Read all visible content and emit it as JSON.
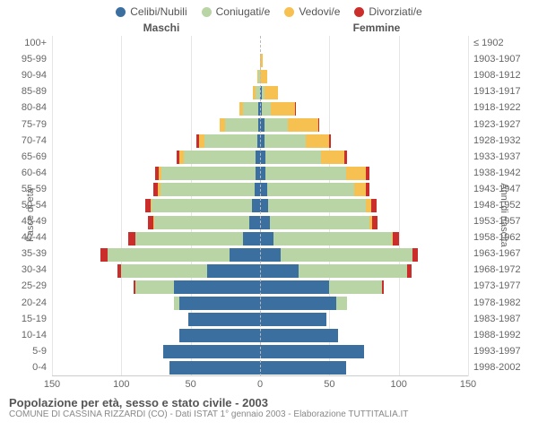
{
  "legend": {
    "items": [
      {
        "label": "Celibi/Nubili",
        "color": "#3b6fa0"
      },
      {
        "label": "Coniugati/e",
        "color": "#b9d4a5"
      },
      {
        "label": "Vedovi/e",
        "color": "#f7c151"
      },
      {
        "label": "Divorziati/e",
        "color": "#cb2e2a"
      }
    ]
  },
  "headers": {
    "left": "Maschi",
    "right": "Femmine"
  },
  "axis_labels": {
    "left": "Fasce di età",
    "right": "Anni di nascita"
  },
  "colors": {
    "single": "#3b6fa0",
    "married": "#b9d4a5",
    "widowed": "#f7c151",
    "divorced": "#cb2e2a",
    "grid": "#e5e5e5",
    "text": "#666666"
  },
  "xlim": 150,
  "x_ticks_left": [
    150,
    100,
    50,
    0
  ],
  "x_ticks_right": [
    50,
    100,
    150
  ],
  "footer": {
    "title": "Popolazione per età, sesso e stato civile - 2003",
    "subtitle": "COMUNE DI CASSINA RIZZARDI (CO) - Dati ISTAT 1° gennaio 2003 - Elaborazione TUTTITALIA.IT"
  },
  "rows": [
    {
      "age": "100+",
      "birth": "≤ 1902",
      "m": {
        "s": 0,
        "c": 0,
        "v": 0,
        "d": 0
      },
      "f": {
        "s": 0,
        "c": 0,
        "v": 0,
        "d": 0
      }
    },
    {
      "age": "95-99",
      "birth": "1903-1907",
      "m": {
        "s": 0,
        "c": 0,
        "v": 0,
        "d": 0
      },
      "f": {
        "s": 0,
        "c": 0,
        "v": 2,
        "d": 0
      }
    },
    {
      "age": "90-94",
      "birth": "1908-1912",
      "m": {
        "s": 0,
        "c": 1,
        "v": 1,
        "d": 0
      },
      "f": {
        "s": 0,
        "c": 0,
        "v": 5,
        "d": 0
      }
    },
    {
      "age": "85-89",
      "birth": "1913-1917",
      "m": {
        "s": 0,
        "c": 3,
        "v": 2,
        "d": 0
      },
      "f": {
        "s": 1,
        "c": 2,
        "v": 10,
        "d": 0
      }
    },
    {
      "age": "80-84",
      "birth": "1918-1922",
      "m": {
        "s": 1,
        "c": 11,
        "v": 3,
        "d": 0
      },
      "f": {
        "s": 1,
        "c": 7,
        "v": 17,
        "d": 1
      }
    },
    {
      "age": "75-79",
      "birth": "1923-1927",
      "m": {
        "s": 1,
        "c": 24,
        "v": 4,
        "d": 0
      },
      "f": {
        "s": 3,
        "c": 17,
        "v": 22,
        "d": 1
      }
    },
    {
      "age": "70-74",
      "birth": "1928-1932",
      "m": {
        "s": 2,
        "c": 38,
        "v": 4,
        "d": 2
      },
      "f": {
        "s": 3,
        "c": 30,
        "v": 17,
        "d": 1
      }
    },
    {
      "age": "65-69",
      "birth": "1933-1937",
      "m": {
        "s": 3,
        "c": 52,
        "v": 3,
        "d": 2
      },
      "f": {
        "s": 4,
        "c": 40,
        "v": 17,
        "d": 2
      }
    },
    {
      "age": "60-64",
      "birth": "1938-1942",
      "m": {
        "s": 3,
        "c": 68,
        "v": 2,
        "d": 3
      },
      "f": {
        "s": 4,
        "c": 58,
        "v": 14,
        "d": 3
      }
    },
    {
      "age": "55-59",
      "birth": "1943-1947",
      "m": {
        "s": 4,
        "c": 68,
        "v": 2,
        "d": 3
      },
      "f": {
        "s": 5,
        "c": 63,
        "v": 8,
        "d": 3
      }
    },
    {
      "age": "50-54",
      "birth": "1948-1952",
      "m": {
        "s": 6,
        "c": 72,
        "v": 1,
        "d": 4
      },
      "f": {
        "s": 6,
        "c": 70,
        "v": 4,
        "d": 4
      }
    },
    {
      "age": "45-49",
      "birth": "1953-1957",
      "m": {
        "s": 8,
        "c": 68,
        "v": 1,
        "d": 4
      },
      "f": {
        "s": 7,
        "c": 72,
        "v": 2,
        "d": 4
      }
    },
    {
      "age": "40-44",
      "birth": "1958-1962",
      "m": {
        "s": 12,
        "c": 78,
        "v": 0,
        "d": 5
      },
      "f": {
        "s": 10,
        "c": 85,
        "v": 1,
        "d": 4
      }
    },
    {
      "age": "35-39",
      "birth": "1963-1967",
      "m": {
        "s": 22,
        "c": 88,
        "v": 0,
        "d": 5
      },
      "f": {
        "s": 15,
        "c": 95,
        "v": 0,
        "d": 4
      }
    },
    {
      "age": "30-34",
      "birth": "1968-1972",
      "m": {
        "s": 38,
        "c": 62,
        "v": 0,
        "d": 3
      },
      "f": {
        "s": 28,
        "c": 78,
        "v": 0,
        "d": 3
      }
    },
    {
      "age": "25-29",
      "birth": "1973-1977",
      "m": {
        "s": 62,
        "c": 28,
        "v": 0,
        "d": 1
      },
      "f": {
        "s": 50,
        "c": 38,
        "v": 0,
        "d": 1
      }
    },
    {
      "age": "20-24",
      "birth": "1978-1982",
      "m": {
        "s": 58,
        "c": 4,
        "v": 0,
        "d": 0
      },
      "f": {
        "s": 55,
        "c": 8,
        "v": 0,
        "d": 0
      }
    },
    {
      "age": "15-19",
      "birth": "1983-1987",
      "m": {
        "s": 52,
        "c": 0,
        "v": 0,
        "d": 0
      },
      "f": {
        "s": 48,
        "c": 0,
        "v": 0,
        "d": 0
      }
    },
    {
      "age": "10-14",
      "birth": "1988-1992",
      "m": {
        "s": 58,
        "c": 0,
        "v": 0,
        "d": 0
      },
      "f": {
        "s": 56,
        "c": 0,
        "v": 0,
        "d": 0
      }
    },
    {
      "age": "5-9",
      "birth": "1993-1997",
      "m": {
        "s": 70,
        "c": 0,
        "v": 0,
        "d": 0
      },
      "f": {
        "s": 75,
        "c": 0,
        "v": 0,
        "d": 0
      }
    },
    {
      "age": "0-4",
      "birth": "1998-2002",
      "m": {
        "s": 65,
        "c": 0,
        "v": 0,
        "d": 0
      },
      "f": {
        "s": 62,
        "c": 0,
        "v": 0,
        "d": 0
      }
    }
  ]
}
